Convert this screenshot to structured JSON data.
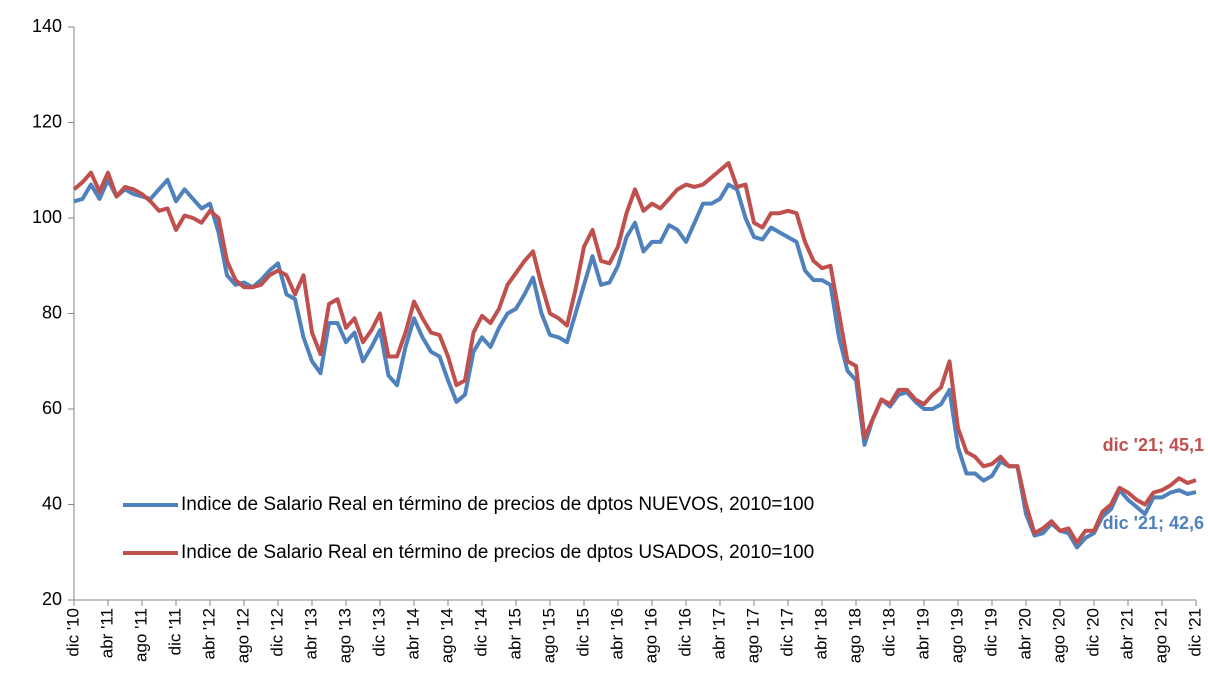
{
  "chart_data": {
    "type": "line",
    "categories": [
      "dic '10",
      null,
      null,
      null,
      "abr '11",
      null,
      null,
      null,
      "ago '11",
      null,
      null,
      null,
      "dic '11",
      null,
      null,
      null,
      "abr '12",
      null,
      null,
      null,
      "ago '12",
      null,
      null,
      null,
      "dic '12",
      null,
      null,
      null,
      "abr '13",
      null,
      null,
      null,
      "ago '13",
      null,
      null,
      null,
      "dic '13",
      null,
      null,
      null,
      "abr '14",
      null,
      null,
      null,
      "ago '14",
      null,
      null,
      null,
      "dic '14",
      null,
      null,
      null,
      "abr '15",
      null,
      null,
      null,
      "ago '15",
      null,
      null,
      null,
      "dic '15",
      null,
      null,
      null,
      "abr '16",
      null,
      null,
      null,
      "ago '16",
      null,
      null,
      null,
      "dic '16",
      null,
      null,
      null,
      "abr '17",
      null,
      null,
      null,
      "ago '17",
      null,
      null,
      null,
      "dic '17",
      null,
      null,
      null,
      "abr '18",
      null,
      null,
      null,
      "ago '18",
      null,
      null,
      null,
      "dic '18",
      null,
      null,
      null,
      "abr '19",
      null,
      null,
      null,
      "ago '19",
      null,
      null,
      null,
      "dic '19",
      null,
      null,
      null,
      "abr '20",
      null,
      null,
      null,
      "ago '20",
      null,
      null,
      null,
      "dic '20",
      null,
      null,
      null,
      "abr '21",
      null,
      null,
      null,
      "ago '21",
      null,
      null,
      null,
      "dic '21"
    ],
    "series": [
      {
        "name": "Indice de Salario Real en término de precios de dptos NUEVOS, 2010=100",
        "color": "#4f81bd",
        "values": [
          103.5,
          104,
          107,
          104,
          108,
          104.5,
          106,
          105,
          104.5,
          104,
          106,
          108,
          103.5,
          106,
          104,
          102,
          103,
          97,
          88,
          86,
          86.5,
          85.5,
          87,
          89,
          90.5,
          84,
          83,
          75,
          70,
          67.5,
          78,
          78,
          74,
          76,
          70,
          73,
          76.5,
          67,
          65,
          73,
          79,
          75,
          72,
          71,
          66,
          61.5,
          63,
          72,
          75,
          73,
          77,
          80,
          81,
          84,
          87.5,
          80,
          75.5,
          75,
          74,
          80,
          86,
          92,
          86,
          86.5,
          90,
          96,
          99,
          93,
          95,
          95,
          98.5,
          97.5,
          95,
          99,
          103,
          103,
          104,
          107,
          106,
          100,
          96,
          95.5,
          98,
          97,
          96,
          95,
          89,
          87,
          87,
          86,
          75,
          68,
          66,
          52.5,
          58,
          62,
          60.5,
          63,
          63.5,
          61.5,
          60,
          60,
          61,
          64,
          52,
          46.5,
          46.5,
          45,
          46,
          49,
          48,
          48,
          38,
          33.5,
          34,
          36,
          34.5,
          34,
          31,
          33,
          34,
          37.5,
          39,
          43,
          41,
          39.5,
          38,
          41.5,
          41.5,
          42.5,
          43,
          42.2,
          42.6
        ],
        "value_labels": [
          null,
          null,
          null,
          null,
          null,
          null,
          null,
          null,
          null,
          null,
          null,
          null,
          null,
          null,
          null,
          null,
          null,
          null,
          null,
          null,
          null,
          null,
          null,
          null,
          null,
          null,
          null,
          null,
          null,
          null,
          null,
          null,
          null,
          null,
          null,
          null,
          null,
          null,
          null,
          null,
          null,
          null,
          null,
          null,
          null,
          null,
          null,
          null,
          null,
          null,
          null,
          null,
          null,
          null,
          null,
          null,
          null,
          null,
          null,
          null,
          null,
          null,
          null,
          null,
          null,
          null,
          null,
          null,
          null,
          null,
          null,
          null,
          null,
          null,
          null,
          null,
          null,
          null,
          null,
          null,
          null,
          null,
          null,
          null,
          null,
          null,
          null,
          null,
          null,
          null,
          null,
          null,
          null,
          null,
          null,
          null,
          null,
          null,
          null,
          null,
          null,
          null,
          null,
          null,
          null,
          null,
          null,
          null,
          null,
          null,
          null,
          null,
          null,
          null,
          null,
          null,
          null,
          null,
          null,
          null,
          null,
          null,
          null,
          null,
          null,
          null,
          null,
          null,
          null,
          null,
          null,
          null,
          "dic '21; 42,6"
        ]
      },
      {
        "name": "Indice de Salario Real en término de precios de dptos USADOS, 2010=100",
        "color": "#c0504d",
        "values": [
          106,
          107.5,
          109.5,
          105.5,
          109.5,
          104.5,
          106.5,
          106,
          105,
          103.5,
          101.5,
          102,
          97.5,
          100.5,
          100,
          99,
          101.5,
          100,
          91,
          87,
          85.5,
          85.5,
          86,
          88,
          89,
          88,
          84,
          88,
          76,
          71.5,
          82,
          83,
          77,
          79,
          74,
          76.5,
          80,
          71,
          71,
          76,
          82.5,
          79,
          76,
          75.5,
          71,
          65,
          66,
          76,
          79.5,
          78,
          81,
          86,
          88.5,
          91,
          93,
          86,
          80,
          79,
          77.5,
          85,
          94,
          97.5,
          91,
          90.5,
          94,
          101,
          106,
          101.5,
          103,
          102,
          104,
          106,
          107,
          106.5,
          107,
          108.5,
          110,
          111.5,
          106.5,
          107,
          99,
          98,
          101,
          101,
          101.5,
          101,
          95,
          91,
          89.5,
          90,
          80,
          70,
          69,
          54,
          58,
          62,
          61,
          64,
          64,
          62,
          61,
          63,
          64.5,
          70,
          56,
          51,
          50,
          48,
          48.5,
          50,
          48,
          48,
          40,
          34,
          35,
          36.5,
          34.5,
          35,
          32,
          34.5,
          34.5,
          38.5,
          40,
          43.5,
          42.5,
          41,
          40,
          42.5,
          43,
          44,
          45.5,
          44.5,
          45.1
        ],
        "value_labels": [
          null,
          null,
          null,
          null,
          null,
          null,
          null,
          null,
          null,
          null,
          null,
          null,
          null,
          null,
          null,
          null,
          null,
          null,
          null,
          null,
          null,
          null,
          null,
          null,
          null,
          null,
          null,
          null,
          null,
          null,
          null,
          null,
          null,
          null,
          null,
          null,
          null,
          null,
          null,
          null,
          null,
          null,
          null,
          null,
          null,
          null,
          null,
          null,
          null,
          null,
          null,
          null,
          null,
          null,
          null,
          null,
          null,
          null,
          null,
          null,
          null,
          null,
          null,
          null,
          null,
          null,
          null,
          null,
          null,
          null,
          null,
          null,
          null,
          null,
          null,
          null,
          null,
          null,
          null,
          null,
          null,
          null,
          null,
          null,
          null,
          null,
          null,
          null,
          null,
          null,
          null,
          null,
          null,
          null,
          null,
          null,
          null,
          null,
          null,
          null,
          null,
          null,
          null,
          null,
          null,
          null,
          null,
          null,
          null,
          null,
          null,
          null,
          null,
          null,
          null,
          null,
          null,
          null,
          null,
          null,
          null,
          null,
          null,
          null,
          null,
          null,
          null,
          null,
          null,
          null,
          null,
          null,
          "dic '21; 45,1"
        ]
      }
    ],
    "ylim": [
      20,
      140
    ],
    "yticks": [
      20,
      40,
      60,
      80,
      100,
      120,
      140
    ],
    "grid": false,
    "legend": "lower left"
  }
}
